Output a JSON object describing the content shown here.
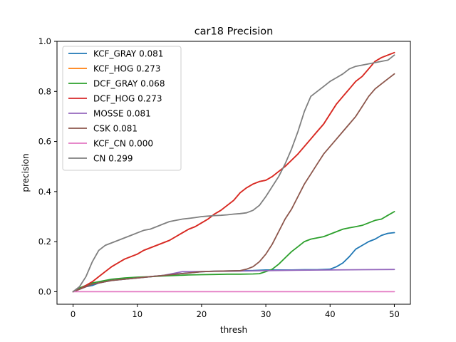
{
  "chart_data": {
    "type": "line",
    "title": "car18 Precision",
    "xlabel": "thresh",
    "ylabel": "precision",
    "xlim": [
      -2.5,
      52.5
    ],
    "ylim": [
      -0.05,
      1.0
    ],
    "xticks": [
      0,
      10,
      20,
      30,
      40,
      50
    ],
    "xtick_labels": [
      "0",
      "10",
      "20",
      "30",
      "40",
      "50"
    ],
    "yticks": [
      0.0,
      0.2,
      0.4,
      0.6,
      0.8,
      1.0
    ],
    "ytick_labels": [
      "0.0",
      "0.2",
      "0.4",
      "0.6",
      "0.8",
      "1.0"
    ],
    "legend_position": "top-left",
    "grid": false,
    "series": [
      {
        "name": "KCF_GRAY 0.081",
        "color": "#1f77b4",
        "x": [
          0,
          1,
          2,
          3,
          4,
          5,
          6,
          8,
          10,
          12,
          14,
          16,
          18,
          20,
          22,
          24,
          26,
          28,
          30,
          32,
          34,
          36,
          38,
          40,
          41,
          42,
          43,
          44,
          45,
          46,
          47,
          48,
          49,
          50
        ],
        "y": [
          0.0,
          0.01,
          0.02,
          0.025,
          0.035,
          0.04,
          0.045,
          0.05,
          0.055,
          0.06,
          0.065,
          0.07,
          0.075,
          0.08,
          0.082,
          0.083,
          0.084,
          0.085,
          0.087,
          0.087,
          0.087,
          0.088,
          0.088,
          0.09,
          0.1,
          0.115,
          0.14,
          0.17,
          0.185,
          0.2,
          0.21,
          0.225,
          0.233,
          0.236
        ]
      },
      {
        "name": "KCF_HOG 0.273",
        "color": "#ff7f0e",
        "x": [
          0,
          1,
          2,
          3,
          4,
          5,
          6,
          7,
          8,
          9,
          10,
          11,
          12,
          13,
          14,
          15,
          16,
          17,
          18,
          19,
          20,
          21,
          22,
          23,
          24,
          25,
          26,
          27,
          28,
          29,
          30,
          31,
          32,
          33,
          34,
          35,
          36,
          37,
          38,
          39,
          40,
          41,
          42,
          43,
          44,
          45,
          46,
          47,
          48,
          49,
          50
        ],
        "y": [
          0.0,
          0.01,
          0.025,
          0.04,
          0.06,
          0.08,
          0.1,
          0.115,
          0.13,
          0.14,
          0.15,
          0.165,
          0.175,
          0.185,
          0.195,
          0.205,
          0.22,
          0.235,
          0.25,
          0.26,
          0.275,
          0.29,
          0.31,
          0.325,
          0.345,
          0.365,
          0.395,
          0.415,
          0.43,
          0.44,
          0.445,
          0.46,
          0.48,
          0.5,
          0.525,
          0.55,
          0.58,
          0.61,
          0.64,
          0.67,
          0.71,
          0.75,
          0.78,
          0.81,
          0.84,
          0.86,
          0.89,
          0.92,
          0.935,
          0.945,
          0.955
        ]
      },
      {
        "name": "DCF_GRAY 0.068",
        "color": "#2ca02c",
        "x": [
          0,
          1,
          2,
          3,
          4,
          5,
          6,
          8,
          10,
          12,
          14,
          16,
          18,
          20,
          22,
          24,
          26,
          28,
          29,
          30,
          31,
          32,
          33,
          34,
          35,
          36,
          37,
          38,
          39,
          40,
          41,
          42,
          43,
          44,
          45,
          46,
          47,
          48,
          49,
          50
        ],
        "y": [
          0.0,
          0.015,
          0.025,
          0.035,
          0.04,
          0.045,
          0.05,
          0.055,
          0.058,
          0.06,
          0.063,
          0.065,
          0.067,
          0.068,
          0.069,
          0.07,
          0.07,
          0.071,
          0.072,
          0.08,
          0.09,
          0.11,
          0.135,
          0.16,
          0.18,
          0.2,
          0.21,
          0.215,
          0.22,
          0.23,
          0.24,
          0.25,
          0.255,
          0.26,
          0.265,
          0.275,
          0.285,
          0.29,
          0.305,
          0.32
        ]
      },
      {
        "name": "DCF_HOG 0.273",
        "color": "#d62728",
        "x": [
          0,
          1,
          2,
          3,
          4,
          5,
          6,
          7,
          8,
          9,
          10,
          11,
          12,
          13,
          14,
          15,
          16,
          17,
          18,
          19,
          20,
          21,
          22,
          23,
          24,
          25,
          26,
          27,
          28,
          29,
          30,
          31,
          32,
          33,
          34,
          35,
          36,
          37,
          38,
          39,
          40,
          41,
          42,
          43,
          44,
          45,
          46,
          47,
          48,
          49,
          50
        ],
        "y": [
          0.0,
          0.01,
          0.025,
          0.04,
          0.06,
          0.08,
          0.1,
          0.115,
          0.13,
          0.14,
          0.15,
          0.165,
          0.175,
          0.185,
          0.195,
          0.205,
          0.22,
          0.235,
          0.25,
          0.26,
          0.275,
          0.29,
          0.31,
          0.325,
          0.345,
          0.365,
          0.395,
          0.415,
          0.43,
          0.44,
          0.445,
          0.46,
          0.48,
          0.5,
          0.525,
          0.55,
          0.58,
          0.61,
          0.64,
          0.67,
          0.71,
          0.75,
          0.78,
          0.81,
          0.84,
          0.86,
          0.89,
          0.92,
          0.935,
          0.945,
          0.955
        ]
      },
      {
        "name": "MOSSE 0.081",
        "color": "#9467bd",
        "x": [
          0,
          1,
          2,
          3,
          4,
          5,
          6,
          8,
          10,
          12,
          14,
          16,
          17,
          18,
          20,
          25,
          30,
          35,
          40,
          45,
          50
        ],
        "y": [
          0.0,
          0.01,
          0.02,
          0.03,
          0.035,
          0.04,
          0.045,
          0.05,
          0.055,
          0.06,
          0.065,
          0.075,
          0.08,
          0.08,
          0.081,
          0.082,
          0.084,
          0.086,
          0.087,
          0.088,
          0.089
        ]
      },
      {
        "name": "CSK 0.081",
        "color": "#8c564b",
        "x": [
          0,
          1,
          2,
          3,
          4,
          5,
          6,
          8,
          10,
          12,
          14,
          16,
          18,
          20,
          22,
          24,
          26,
          27,
          28,
          29,
          30,
          31,
          32,
          33,
          34,
          35,
          36,
          37,
          38,
          39,
          40,
          41,
          42,
          43,
          44,
          45,
          46,
          47,
          48,
          49,
          50
        ],
        "y": [
          0.0,
          0.01,
          0.02,
          0.03,
          0.035,
          0.04,
          0.045,
          0.05,
          0.055,
          0.06,
          0.065,
          0.07,
          0.075,
          0.08,
          0.082,
          0.083,
          0.084,
          0.09,
          0.1,
          0.12,
          0.15,
          0.19,
          0.24,
          0.29,
          0.33,
          0.38,
          0.43,
          0.47,
          0.51,
          0.55,
          0.58,
          0.61,
          0.64,
          0.67,
          0.7,
          0.74,
          0.78,
          0.81,
          0.83,
          0.85,
          0.87
        ]
      },
      {
        "name": "KCF_CN 0.000",
        "color": "#e377c2",
        "x": [
          0,
          50
        ],
        "y": [
          0.0,
          0.0
        ]
      },
      {
        "name": "CN 0.299",
        "color": "#7f7f7f",
        "x": [
          0,
          1,
          2,
          3,
          4,
          5,
          6,
          7,
          8,
          9,
          10,
          11,
          12,
          13,
          14,
          15,
          16,
          17,
          18,
          19,
          20,
          21,
          22,
          23,
          24,
          25,
          26,
          27,
          28,
          29,
          30,
          31,
          32,
          33,
          34,
          35,
          36,
          37,
          38,
          39,
          40,
          41,
          42,
          43,
          44,
          45,
          46,
          47,
          48,
          49,
          50
        ],
        "y": [
          0.0,
          0.02,
          0.06,
          0.12,
          0.165,
          0.185,
          0.195,
          0.205,
          0.215,
          0.225,
          0.235,
          0.245,
          0.25,
          0.26,
          0.27,
          0.28,
          0.285,
          0.29,
          0.293,
          0.296,
          0.3,
          0.302,
          0.304,
          0.305,
          0.307,
          0.31,
          0.312,
          0.315,
          0.325,
          0.345,
          0.38,
          0.42,
          0.46,
          0.51,
          0.57,
          0.64,
          0.72,
          0.78,
          0.8,
          0.82,
          0.84,
          0.855,
          0.87,
          0.89,
          0.9,
          0.905,
          0.91,
          0.915,
          0.92,
          0.925,
          0.945
        ]
      }
    ]
  }
}
